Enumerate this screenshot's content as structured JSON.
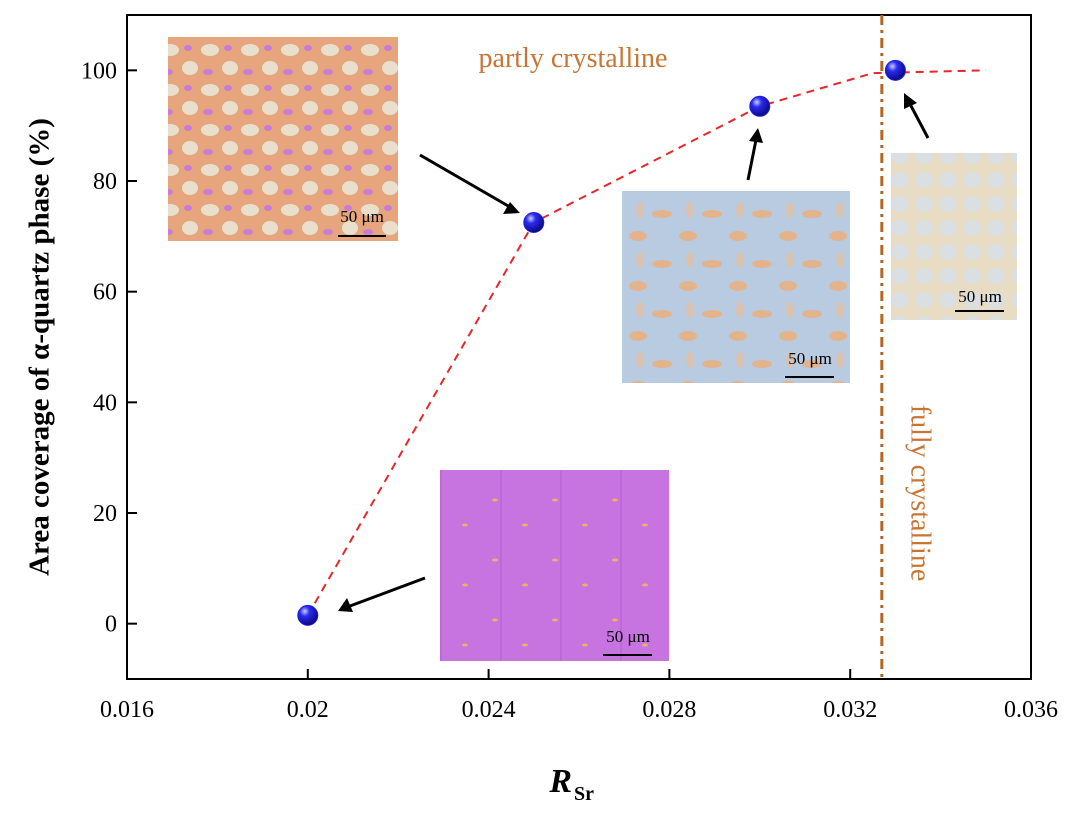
{
  "chart_data": {
    "type": "scatter",
    "y_label": "Area coverage of α-quartz phase (%)",
    "x_label": "R",
    "x_label_sub": "Sr",
    "xlim": [
      0.016,
      0.036
    ],
    "xticks": [
      0.016,
      0.02,
      0.024,
      0.028,
      0.032,
      0.036
    ],
    "ylim": [
      -10,
      110
    ],
    "yticks": [
      0,
      20,
      40,
      60,
      80,
      100
    ],
    "points": {
      "color": "#1f1fe0",
      "x": [
        0.02,
        0.025,
        0.03,
        0.033
      ],
      "values": [
        1.5,
        72.5,
        93.5,
        100
      ]
    },
    "fit_line": {
      "color": "#e8262a",
      "x": [
        0.02,
        0.025,
        0.03,
        0.0325,
        0.035
      ],
      "values": [
        1.5,
        72.5,
        93.5,
        99.5,
        100
      ]
    },
    "boundary": {
      "x": 0.0327,
      "color": "#b5651d"
    },
    "annotations": [
      "partly crystalline",
      "fully crystalline"
    ],
    "scale_labels": [
      "50 μm",
      "50 μm",
      "50 μm",
      "50 μm"
    ]
  }
}
